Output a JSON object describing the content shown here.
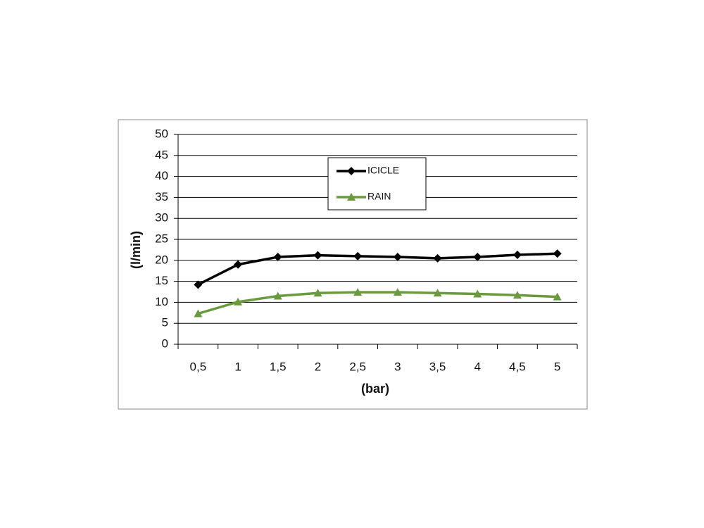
{
  "chart_data": {
    "type": "line",
    "x_label": "(bar)",
    "y_label": "(l/min)",
    "categories": [
      "0,5",
      "1",
      "1,5",
      "2",
      "2,5",
      "3",
      "3,5",
      "4",
      "4,5",
      "5"
    ],
    "series": [
      {
        "name": "ICICLE",
        "color": "#000000",
        "marker": "diamond",
        "values": [
          14.2,
          19,
          20.8,
          21.2,
          21,
          20.8,
          20.5,
          20.8,
          21.3,
          21.6
        ]
      },
      {
        "name": "RAIN",
        "color": "#6a9a3e",
        "marker": "triangle",
        "values": [
          7.3,
          10.1,
          11.5,
          12.2,
          12.4,
          12.4,
          12.2,
          12,
          11.7,
          11.3
        ]
      }
    ],
    "ylim": [
      0,
      50
    ],
    "yticks": [
      0,
      5,
      10,
      15,
      20,
      25,
      30,
      35,
      40,
      45,
      50
    ],
    "grid": true
  }
}
